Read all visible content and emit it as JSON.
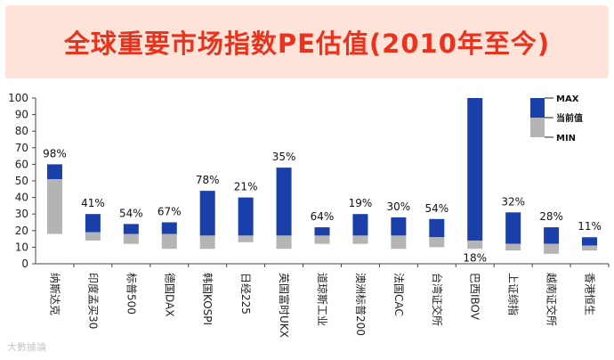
{
  "banner": {
    "title": "全球重要市场指数PE估值(2010年至今)"
  },
  "watermark": "大數據論",
  "colors": {
    "range": "#1a3fa8",
    "current": "#b4b4b4",
    "title": "#e8331f",
    "banner_bg": "#fde3d8"
  },
  "chart_data": {
    "type": "bar",
    "title": "全球重要市场指数PE估值(2010年至今)",
    "ylim": [
      0,
      100
    ],
    "yticks": [
      0,
      10,
      20,
      30,
      40,
      50,
      60,
      70,
      80,
      90,
      100
    ],
    "legend": [
      "MAX",
      "当前值",
      "MIN"
    ],
    "categories": [
      "纳斯达克",
      "印度孟买30",
      "标普500",
      "德国DAX",
      "韩国KOSPI",
      "日经225",
      "英国富时UKX",
      "道琼斯工业",
      "澳洲标普200",
      "法国CAC",
      "台湾证交所",
      "巴西IBOV",
      "上证综指",
      "越南证交所",
      "香港恒生"
    ],
    "series": [
      {
        "name": "MAX",
        "values": [
          60,
          30,
          24,
          25,
          44,
          40,
          58,
          22,
          30,
          28,
          27,
          100,
          31,
          22,
          16
        ]
      },
      {
        "name": "当前值",
        "values": [
          51,
          19,
          18,
          18,
          17,
          17,
          17,
          17,
          17,
          17,
          16,
          14,
          12,
          12,
          11
        ]
      },
      {
        "name": "MIN",
        "values": [
          18,
          14,
          12,
          9,
          9,
          13,
          9,
          12,
          12,
          9,
          10,
          9,
          8,
          6,
          8
        ]
      }
    ],
    "percentile_labels": [
      "98%",
      "41%",
      "54%",
      "67%",
      "78%",
      "21%",
      "35%",
      "64%",
      "19%",
      "30%",
      "54%",
      "18%",
      "32%",
      "28%",
      "11%"
    ]
  }
}
